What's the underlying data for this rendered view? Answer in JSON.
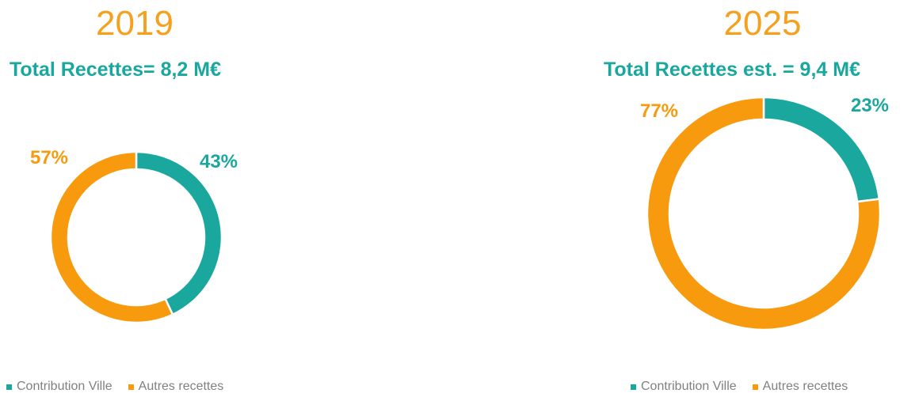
{
  "colors": {
    "contribution": "#1AA79E",
    "autres": "#F79A0E"
  },
  "legend": [
    "Contribution Ville",
    "Autres recettes"
  ],
  "chart_data": [
    {
      "type": "pie",
      "title": "2019",
      "subtitle": "Total Recettes= 8,2 M€",
      "categories": [
        "Contribution Ville",
        "Autres recettes"
      ],
      "values": [
        43,
        57
      ],
      "labels": [
        "43%",
        "57%"
      ]
    },
    {
      "type": "pie",
      "title": "2025",
      "subtitle": "Total Recettes est. = 9,4 M€",
      "categories": [
        "Contribution Ville",
        "Autres recettes"
      ],
      "values": [
        23,
        77
      ],
      "labels": [
        "23%",
        "77%"
      ]
    }
  ]
}
